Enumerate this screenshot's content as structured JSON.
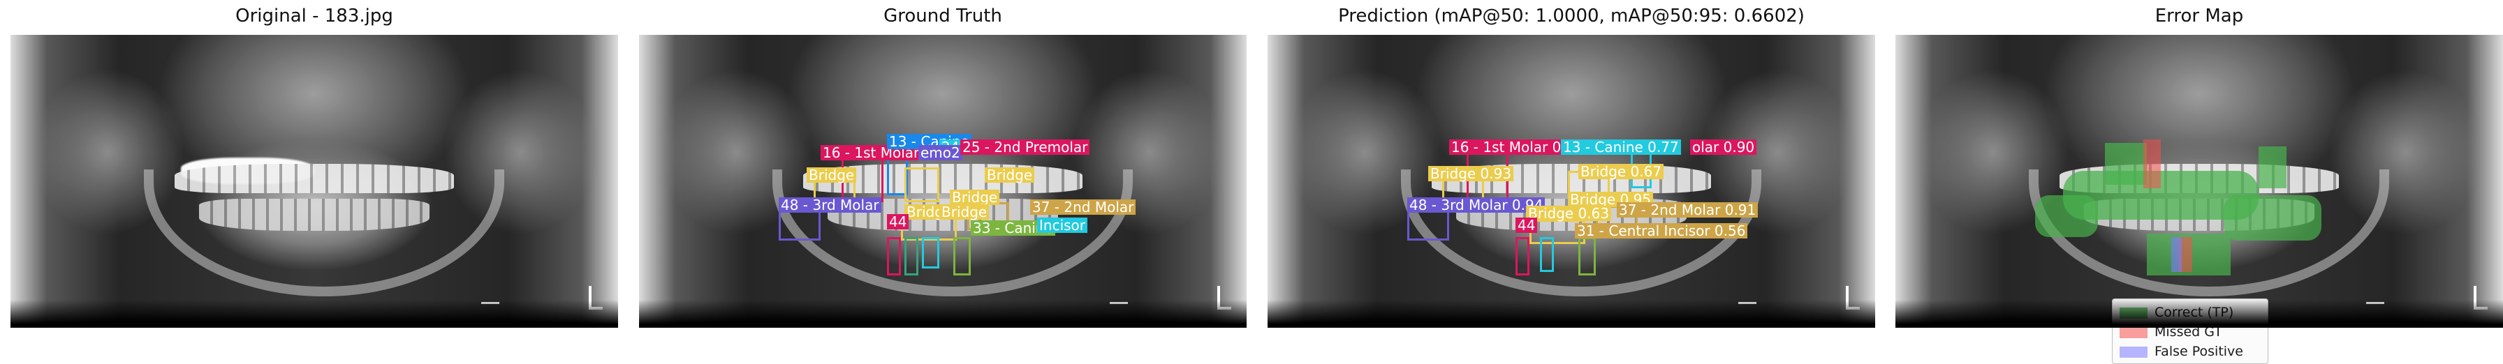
{
  "panels": {
    "original": {
      "title": "Original - 183.jpg"
    },
    "ground_truth": {
      "title": "Ground Truth",
      "labels": [
        "16 - 1st Molar",
        "13 - Canine",
        "24",
        "emo2",
        "25 - 2nd Premolar",
        "Bridge",
        "Bridge",
        "Bridge",
        "48 - 3rd Molar",
        "Bridge",
        "Bridge",
        "37 - 2nd Molar",
        "44",
        "33 - Canine",
        "Incisor"
      ]
    },
    "prediction": {
      "title": "Prediction (mAP@50: 1.0000, mAP@50:95: 0.6602)",
      "labels": [
        "16 - 1st Molar 0.77",
        "13 - Canine 0.77",
        "olar 0.90",
        "Bridge 0.93",
        "Bridge 0.67",
        "48 - 3rd Molar 0.94",
        "Bridge 0.95",
        "Bridge 0.63",
        "37 - 2nd Molar 0.91",
        "44",
        "31 - Central Incisor 0.56"
      ]
    },
    "error_map": {
      "title": "Error Map",
      "legend": [
        "Correct (TP)",
        "Missed GT",
        "False Positive"
      ]
    }
  },
  "colors": {
    "pink": "#d81b60",
    "blue": "#1e88e5",
    "cyan": "#26c6da",
    "yellow": "#e6c84f",
    "purple": "#6a5acd",
    "green": "#7cb342",
    "tan": "#c9a24a",
    "tp": "#4caf50",
    "missed": "#ef5350",
    "fp": "#7b7bff"
  }
}
